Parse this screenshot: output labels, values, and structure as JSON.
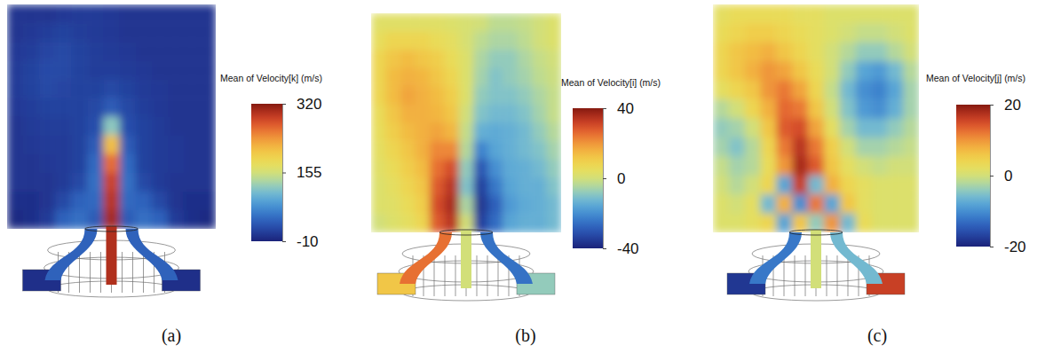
{
  "chart_data": [
    {
      "type": "heatmap",
      "title": "(a)",
      "tick_labels": false,
      "colorbar": {
        "label": "Mean of Velocity[k] (m/s)",
        "range": [
          -10,
          320
        ],
        "ticks": [
          -10,
          155,
          320
        ]
      },
      "cells": [
        [
          5,
          5,
          5,
          8,
          10,
          10,
          8,
          5,
          5,
          5,
          5,
          5,
          5
        ],
        [
          5,
          8,
          12,
          15,
          12,
          10,
          8,
          5,
          5,
          5,
          5,
          5,
          5
        ],
        [
          8,
          12,
          18,
          20,
          15,
          12,
          10,
          8,
          5,
          5,
          5,
          5,
          5
        ],
        [
          10,
          15,
          22,
          20,
          15,
          12,
          12,
          10,
          8,
          5,
          5,
          5,
          5
        ],
        [
          10,
          15,
          20,
          18,
          15,
          15,
          20,
          15,
          10,
          8,
          5,
          5,
          5
        ],
        [
          8,
          12,
          15,
          15,
          15,
          20,
          35,
          20,
          12,
          8,
          5,
          5,
          5
        ],
        [
          5,
          10,
          12,
          12,
          15,
          25,
          120,
          25,
          15,
          10,
          5,
          5,
          5
        ],
        [
          5,
          8,
          10,
          10,
          15,
          35,
          210,
          35,
          15,
          10,
          8,
          5,
          5
        ],
        [
          5,
          5,
          8,
          10,
          15,
          45,
          260,
          45,
          15,
          10,
          8,
          5,
          5
        ],
        [
          5,
          5,
          5,
          10,
          20,
          50,
          285,
          50,
          20,
          10,
          5,
          5,
          5
        ],
        [
          0,
          0,
          5,
          20,
          40,
          45,
          295,
          45,
          40,
          20,
          5,
          0,
          0
        ],
        [
          -5,
          0,
          10,
          40,
          50,
          35,
          305,
          35,
          50,
          40,
          10,
          0,
          -5
        ]
      ],
      "central_jet": 300,
      "swirl_jets": [
        40,
        40
      ],
      "inlets": [
        0,
        0
      ]
    },
    {
      "type": "heatmap",
      "title": "(b)",
      "tick_labels": false,
      "colorbar": {
        "label": "Mean of Velocity[i] (m/s)",
        "range": [
          -40,
          40
        ],
        "ticks": [
          -40,
          0,
          40
        ]
      },
      "cells": [
        [
          3,
          3,
          3,
          3,
          3,
          2,
          1,
          0,
          -3,
          -3,
          -2,
          0,
          2
        ],
        [
          5,
          8,
          8,
          8,
          6,
          4,
          1,
          -3,
          -5,
          -5,
          -3,
          0,
          2
        ],
        [
          8,
          12,
          14,
          12,
          10,
          6,
          2,
          -5,
          -8,
          -8,
          -5,
          -2,
          0
        ],
        [
          8,
          14,
          16,
          15,
          12,
          8,
          2,
          -6,
          -10,
          -8,
          -6,
          -3,
          -1
        ],
        [
          8,
          14,
          18,
          16,
          14,
          10,
          2,
          -8,
          -10,
          -10,
          -8,
          -5,
          -2
        ],
        [
          6,
          12,
          16,
          16,
          15,
          12,
          0,
          -10,
          -12,
          -12,
          -10,
          -6,
          -2
        ],
        [
          5,
          10,
          14,
          16,
          18,
          15,
          -2,
          -14,
          -15,
          -14,
          -12,
          -8,
          -4
        ],
        [
          4,
          8,
          12,
          16,
          22,
          22,
          -4,
          -22,
          -16,
          -14,
          -12,
          -10,
          -6
        ],
        [
          3,
          6,
          10,
          14,
          25,
          30,
          -8,
          -30,
          -20,
          -15,
          -14,
          -12,
          -8
        ],
        [
          2,
          4,
          8,
          12,
          28,
          34,
          -10,
          -34,
          -24,
          -16,
          -14,
          -14,
          -10
        ],
        [
          2,
          3,
          6,
          10,
          30,
          36,
          -5,
          -36,
          -28,
          -18,
          -15,
          -14,
          -12
        ],
        [
          0,
          2,
          4,
          8,
          28,
          34,
          0,
          -34,
          -26,
          -16,
          -14,
          -14,
          -12
        ]
      ],
      "central_jet": 0,
      "swirl_jets": [
        25,
        -25
      ],
      "inlets": [
        12,
        -8
      ]
    },
    {
      "type": "heatmap",
      "title": "(c)",
      "tick_labels": false,
      "colorbar": {
        "label": "Mean of Velocity[j] (m/s)",
        "range": [
          -20,
          20
        ],
        "ticks": [
          -20,
          0,
          20
        ]
      },
      "cells": [
        [
          2,
          3,
          3,
          3,
          3,
          2,
          2,
          1,
          1,
          1,
          1,
          1,
          1
        ],
        [
          3,
          4,
          5,
          5,
          4,
          3,
          2,
          1,
          0,
          -1,
          -1,
          0,
          1
        ],
        [
          4,
          6,
          7,
          8,
          6,
          4,
          2,
          0,
          -2,
          -4,
          -4,
          -2,
          0
        ],
        [
          4,
          6,
          8,
          10,
          9,
          6,
          3,
          0,
          -4,
          -8,
          -9,
          -6,
          -2
        ],
        [
          2,
          4,
          6,
          10,
          12,
          9,
          4,
          -1,
          -6,
          -10,
          -11,
          -8,
          -3
        ],
        [
          -2,
          0,
          4,
          8,
          13,
          12,
          6,
          0,
          -5,
          -9,
          -10,
          -7,
          -3
        ],
        [
          -4,
          -3,
          0,
          6,
          14,
          15,
          9,
          2,
          -3,
          -6,
          -6,
          -4,
          -2
        ],
        [
          -3,
          -5,
          -2,
          4,
          12,
          17,
          12,
          5,
          0,
          -3,
          -3,
          -2,
          -1
        ],
        [
          -1,
          -3,
          -2,
          3,
          10,
          18,
          14,
          6,
          2,
          0,
          -1,
          0,
          0
        ],
        [
          0,
          -2,
          0,
          4,
          -8,
          16,
          -6,
          8,
          4,
          2,
          1,
          1,
          1
        ],
        [
          1,
          0,
          2,
          -6,
          8,
          -10,
          12,
          -8,
          6,
          2,
          1,
          1,
          1
        ],
        [
          1,
          1,
          2,
          4,
          -8,
          6,
          -4,
          10,
          -6,
          3,
          1,
          1,
          1
        ]
      ],
      "central_jet": 0,
      "swirl_jets": [
        -12,
        -6
      ],
      "inlets": [
        -18,
        16
      ]
    }
  ]
}
